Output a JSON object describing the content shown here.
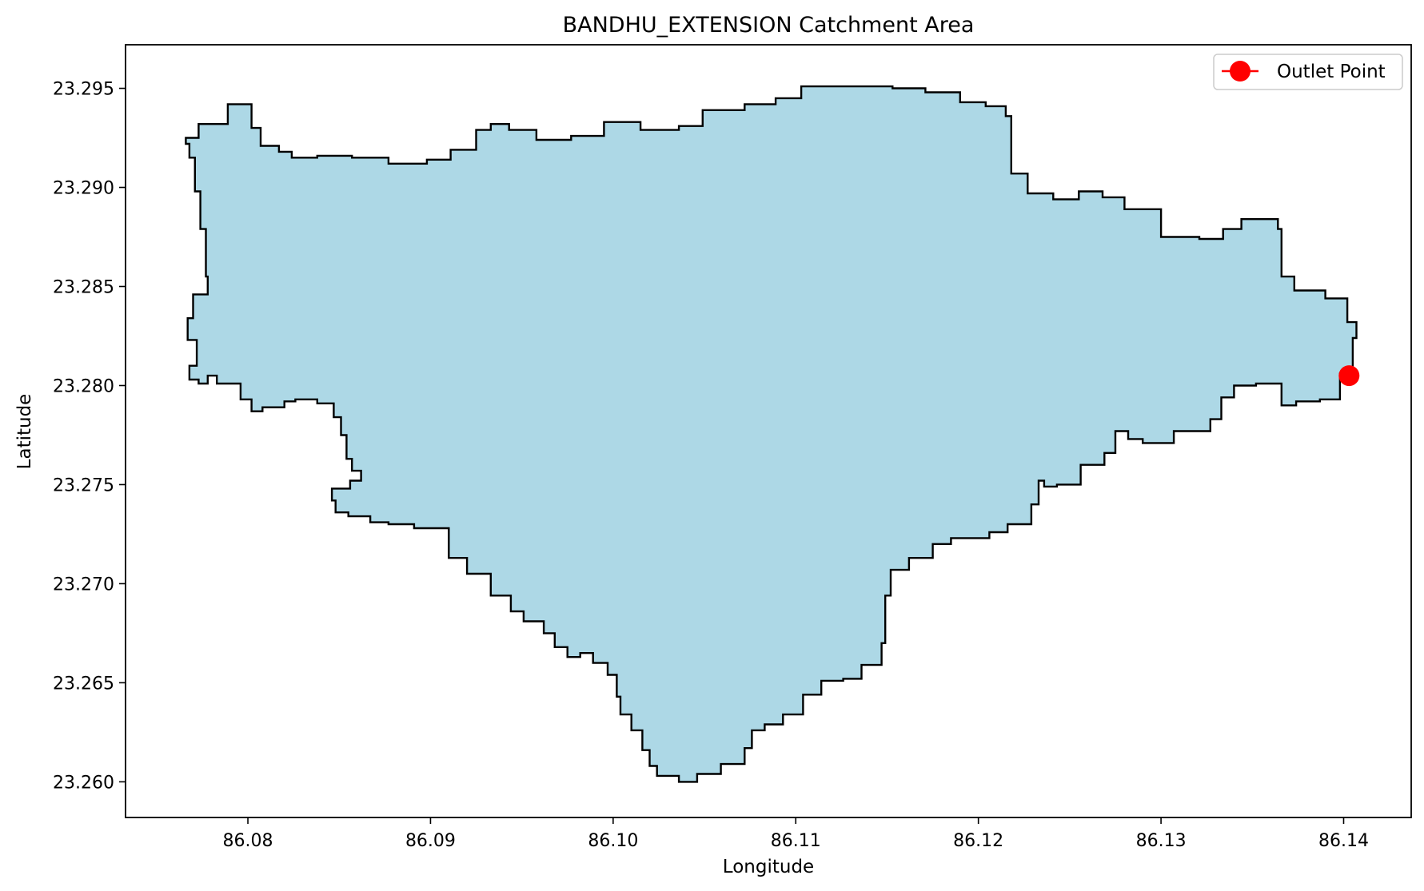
{
  "chart_data": {
    "type": "map",
    "title": "BANDHU_EXTENSION Catchment Area",
    "xlabel": "Longitude",
    "ylabel": "Latitude",
    "xlim": [
      86.0733,
      86.1437
    ],
    "ylim": [
      23.2582,
      23.2972
    ],
    "x_ticks": [
      "86.08",
      "86.09",
      "86.10",
      "86.11",
      "86.12",
      "86.13",
      "86.14"
    ],
    "x_tick_values": [
      86.08,
      86.09,
      86.1,
      86.11,
      86.12,
      86.13,
      86.14
    ],
    "y_ticks": [
      "23.260",
      "23.265",
      "23.270",
      "23.275",
      "23.280",
      "23.285",
      "23.290",
      "23.295"
    ],
    "y_tick_values": [
      23.26,
      23.265,
      23.27,
      23.275,
      23.28,
      23.285,
      23.29,
      23.295
    ],
    "grid": false,
    "legend_position": "top-right",
    "legend": [
      {
        "label": "Outlet Point",
        "color": "#ff0000",
        "marker": "circle"
      }
    ],
    "catchment": {
      "fill_color": "#add8e6",
      "edge_color": "#000000",
      "boundary": [
        [
          86.0766,
          23.2925
        ],
        [
          86.0773,
          23.2932
        ],
        [
          86.0787,
          23.2932
        ],
        [
          86.0789,
          23.2942
        ],
        [
          86.0801,
          23.2942
        ],
        [
          86.0802,
          23.293
        ],
        [
          86.0807,
          23.2921
        ],
        [
          86.0817,
          23.2918
        ],
        [
          86.0824,
          23.2915
        ],
        [
          86.0838,
          23.2916
        ],
        [
          86.0857,
          23.2915
        ],
        [
          86.0877,
          23.2912
        ],
        [
          86.0898,
          23.2914
        ],
        [
          86.0911,
          23.2919
        ],
        [
          86.0925,
          23.2929
        ],
        [
          86.0933,
          23.2932
        ],
        [
          86.0943,
          23.2929
        ],
        [
          86.0958,
          23.2924
        ],
        [
          86.0977,
          23.2926
        ],
        [
          86.0995,
          23.2933
        ],
        [
          86.1015,
          23.2929
        ],
        [
          86.1036,
          23.2931
        ],
        [
          86.1049,
          23.2939
        ],
        [
          86.1072,
          23.2942
        ],
        [
          86.1089,
          23.2945
        ],
        [
          86.1103,
          23.2951
        ],
        [
          86.1125,
          23.2951
        ],
        [
          86.1153,
          23.295
        ],
        [
          86.1171,
          23.2948
        ],
        [
          86.119,
          23.2943
        ],
        [
          86.1204,
          23.2941
        ],
        [
          86.1215,
          23.2936
        ],
        [
          86.1218,
          23.2907
        ],
        [
          86.1227,
          23.2897
        ],
        [
          86.1241,
          23.2894
        ],
        [
          86.1255,
          23.2898
        ],
        [
          86.1268,
          23.2895
        ],
        [
          86.128,
          23.2889
        ],
        [
          86.13,
          23.2875
        ],
        [
          86.1321,
          23.2874
        ],
        [
          86.1334,
          23.2879
        ],
        [
          86.1344,
          23.2884
        ],
        [
          86.1364,
          23.2879
        ],
        [
          86.1366,
          23.2855
        ],
        [
          86.1373,
          23.2848
        ],
        [
          86.139,
          23.2844
        ],
        [
          86.1402,
          23.2832
        ],
        [
          86.1407,
          23.2824
        ],
        [
          86.1405,
          23.2806
        ],
        [
          86.1398,
          23.2793
        ],
        [
          86.1387,
          23.2792
        ],
        [
          86.1374,
          23.279
        ],
        [
          86.1366,
          23.2801
        ],
        [
          86.1352,
          23.28
        ],
        [
          86.134,
          23.2794
        ],
        [
          86.1333,
          23.2783
        ],
        [
          86.1327,
          23.2777
        ],
        [
          86.1307,
          23.2771
        ],
        [
          86.129,
          23.2773
        ],
        [
          86.1282,
          23.2777
        ],
        [
          86.1275,
          23.2766
        ],
        [
          86.1269,
          23.276
        ],
        [
          86.1256,
          23.275
        ],
        [
          86.1243,
          23.2749
        ],
        [
          86.1236,
          23.2752
        ],
        [
          86.1233,
          23.274
        ],
        [
          86.1229,
          23.273
        ],
        [
          86.1216,
          23.2726
        ],
        [
          86.1206,
          23.2723
        ],
        [
          86.1193,
          23.2723
        ],
        [
          86.1185,
          23.272
        ],
        [
          86.1175,
          23.2713
        ],
        [
          86.1162,
          23.2707
        ],
        [
          86.1152,
          23.2694
        ],
        [
          86.1149,
          23.2683
        ],
        [
          86.1149,
          23.267
        ],
        [
          86.1147,
          23.2659
        ],
        [
          86.1136,
          23.2652
        ],
        [
          86.1126,
          23.2651
        ],
        [
          86.1114,
          23.2644
        ],
        [
          86.1104,
          23.2634
        ],
        [
          86.1093,
          23.2629
        ],
        [
          86.1083,
          23.2626
        ],
        [
          86.1076,
          23.2617
        ],
        [
          86.1072,
          23.2609
        ],
        [
          86.1059,
          23.2604
        ],
        [
          86.1046,
          23.26
        ],
        [
          86.1036,
          23.2603
        ],
        [
          86.1024,
          23.2608
        ],
        [
          86.102,
          23.2616
        ],
        [
          86.1016,
          23.2626
        ],
        [
          86.101,
          23.2634
        ],
        [
          86.1004,
          23.2643
        ],
        [
          86.1002,
          23.2654
        ],
        [
          86.0997,
          23.266
        ],
        [
          86.0989,
          23.2665
        ],
        [
          86.0982,
          23.2663
        ],
        [
          86.0975,
          23.2668
        ],
        [
          86.0968,
          23.2675
        ],
        [
          86.0962,
          23.2681
        ],
        [
          86.0951,
          23.2686
        ],
        [
          86.0944,
          23.2694
        ],
        [
          86.0933,
          23.2705
        ],
        [
          86.092,
          23.2713
        ],
        [
          86.091,
          23.2728
        ],
        [
          86.0891,
          23.273
        ],
        [
          86.0877,
          23.2731
        ],
        [
          86.0867,
          23.2734
        ],
        [
          86.0855,
          23.2736
        ],
        [
          86.0848,
          23.2742
        ],
        [
          86.0846,
          23.2748
        ],
        [
          86.0856,
          23.2752
        ],
        [
          86.0862,
          23.2757
        ],
        [
          86.0857,
          23.2763
        ],
        [
          86.0854,
          23.2775
        ],
        [
          86.0851,
          23.2784
        ],
        [
          86.0847,
          23.2791
        ],
        [
          86.0838,
          23.2793
        ],
        [
          86.0826,
          23.2792
        ],
        [
          86.082,
          23.2789
        ],
        [
          86.0808,
          23.2787
        ],
        [
          86.0802,
          23.2793
        ],
        [
          86.0796,
          23.2801
        ],
        [
          86.0783,
          23.2805
        ],
        [
          86.0778,
          23.2801
        ],
        [
          86.0773,
          23.2803
        ],
        [
          86.0768,
          23.281
        ],
        [
          86.0772,
          23.2823
        ],
        [
          86.0767,
          23.2834
        ],
        [
          86.077,
          23.2846
        ],
        [
          86.0778,
          23.2855
        ],
        [
          86.0777,
          23.2863
        ],
        [
          86.0777,
          23.2879
        ],
        [
          86.0774,
          23.2898
        ],
        [
          86.0771,
          23.2915
        ],
        [
          86.0768,
          23.2922
        ]
      ]
    },
    "outlet_point": {
      "x": 86.1403,
      "y": 23.2805,
      "color": "#ff0000"
    }
  }
}
